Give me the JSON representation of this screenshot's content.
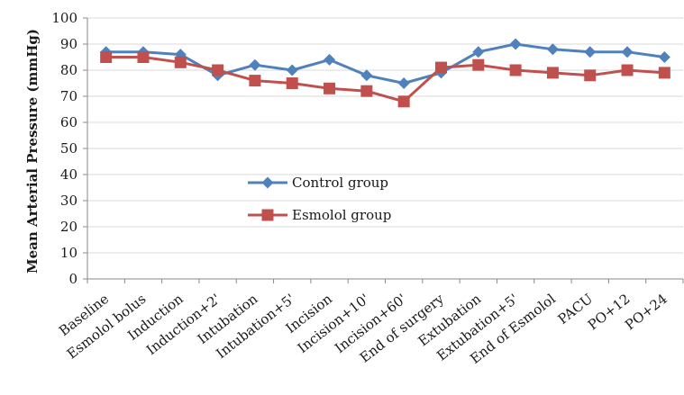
{
  "chart_data": {
    "type": "line",
    "categories": [
      "Baseline",
      "Esmolol bolus",
      "Induction",
      "Induction+2'",
      "Intubation",
      "Intubation+5'",
      "Incision",
      "Incision+10'",
      "Incision+60'",
      "End of surgery",
      "Extubation",
      "Extubation+5'",
      "End of Esmolol",
      "PACU",
      "PO+12",
      "PO+24"
    ],
    "series": [
      {
        "name": "Control group",
        "color": "#4F81BD",
        "marker": "diamond",
        "values": [
          87,
          87,
          86,
          78,
          82,
          80,
          84,
          78,
          75,
          79,
          87,
          90,
          88,
          87,
          87,
          85
        ]
      },
      {
        "name": "Esmolol group",
        "color": "#C0504D",
        "marker": "square",
        "values": [
          85,
          85,
          83,
          80,
          76,
          75,
          73,
          72,
          68,
          81,
          82,
          80,
          79,
          78,
          80,
          79
        ]
      }
    ],
    "title": "",
    "xlabel": "",
    "ylabel": "Mean Arterial Pressure (mmHg)",
    "ylim": [
      0,
      100
    ],
    "yticks": [
      "0",
      "10",
      "20",
      "30",
      "40",
      "50",
      "60",
      "70",
      "80",
      "90",
      "100"
    ],
    "grid": true,
    "legend_position": "center-left"
  }
}
